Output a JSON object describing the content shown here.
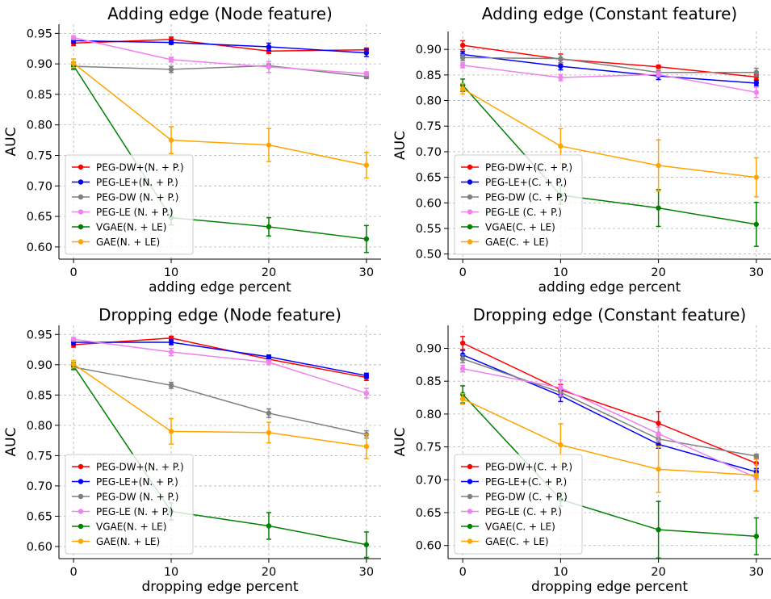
{
  "chart_data": [
    {
      "type": "line",
      "title": "Adding edge (Node feature)",
      "xlabel": "adding edge percent",
      "ylabel": "AUC",
      "x": [
        0,
        10,
        20,
        30
      ],
      "xticks": [
        "0",
        "10",
        "20",
        "30"
      ],
      "xlim": [
        -1.5,
        31.5
      ],
      "ylim": [
        0.58,
        0.965
      ],
      "yticks": [
        "0.60",
        "0.65",
        "0.70",
        "0.75",
        "0.80",
        "0.85",
        "0.90",
        "0.95"
      ],
      "grid": true,
      "legend": "lower-left",
      "series": [
        {
          "name": "PEG-DW+(N. + P.)",
          "color": "#ff0000",
          "values": [
            0.934,
            0.94,
            0.921,
            0.923
          ],
          "errors": [
            0.004,
            0.004,
            0.004,
            0.003
          ]
        },
        {
          "name": "PEG-LE+(N. + P.)",
          "color": "#0000ff",
          "values": [
            0.938,
            0.935,
            0.928,
            0.918
          ],
          "errors": [
            0.004,
            0.003,
            0.006,
            0.006
          ]
        },
        {
          "name": "PEG-DW (N. + P.)",
          "color": "#808080",
          "values": [
            0.896,
            0.891,
            0.897,
            0.879
          ],
          "errors": [
            0.004,
            0.005,
            0.003,
            0.003
          ]
        },
        {
          "name": "PEG-LE (N. + P.)",
          "color": "#ee82ee",
          "values": [
            0.943,
            0.907,
            0.895,
            0.884
          ],
          "errors": [
            0.003,
            0.004,
            0.009,
            0.003
          ]
        },
        {
          "name": "VGAE(N. + LE)",
          "color": "#008000",
          "values": [
            0.897,
            0.648,
            0.633,
            0.613
          ],
          "errors": [
            0.006,
            0.012,
            0.015,
            0.022
          ]
        },
        {
          "name": "GAE(N. + LE)",
          "color": "#ffa500",
          "values": [
            0.901,
            0.775,
            0.767,
            0.734
          ],
          "errors": [
            0.007,
            0.022,
            0.027,
            0.021
          ]
        }
      ]
    },
    {
      "type": "line",
      "title": "Adding edge (Constant feature)",
      "xlabel": "adding edge percent",
      "ylabel": "AUC",
      "x": [
        0,
        10,
        20,
        30
      ],
      "xticks": [
        "0",
        "10",
        "20",
        "30"
      ],
      "xlim": [
        -1.5,
        31.5
      ],
      "ylim": [
        0.49,
        0.935
      ],
      "yticks": [
        "0.50",
        "0.55",
        "0.60",
        "0.65",
        "0.70",
        "0.75",
        "0.80",
        "0.85",
        "0.90"
      ],
      "grid": true,
      "legend": "lower-left",
      "series": [
        {
          "name": "PEG-DW+(C. + P.)",
          "color": "#ff0000",
          "values": [
            0.908,
            0.881,
            0.866,
            0.846
          ],
          "errors": [
            0.009,
            0.01,
            0.003,
            0.005
          ]
        },
        {
          "name": "PEG-LE+(C. + P.)",
          "color": "#0000ff",
          "values": [
            0.89,
            0.867,
            0.848,
            0.834
          ],
          "errors": [
            0.006,
            0.007,
            0.007,
            0.005
          ]
        },
        {
          "name": "PEG-DW (C. + P.)",
          "color": "#808080",
          "values": [
            0.884,
            0.882,
            0.855,
            0.855
          ],
          "errors": [
            0.006,
            0.008,
            0.004,
            0.008
          ]
        },
        {
          "name": "PEG-LE (C. + P.)",
          "color": "#ee82ee",
          "values": [
            0.869,
            0.845,
            0.851,
            0.816
          ],
          "errors": [
            0.005,
            0.006,
            0.005,
            0.01
          ]
        },
        {
          "name": "VGAE(C. + LE)",
          "color": "#008000",
          "values": [
            0.83,
            0.615,
            0.59,
            0.558
          ],
          "errors": [
            0.012,
            0.018,
            0.036,
            0.043
          ]
        },
        {
          "name": "GAE(C. + LE)",
          "color": "#ffa500",
          "values": [
            0.823,
            0.711,
            0.673,
            0.65
          ],
          "errors": [
            0.01,
            0.034,
            0.05,
            0.038
          ]
        }
      ]
    },
    {
      "type": "line",
      "title": "Dropping edge (Node feature)",
      "xlabel": "dropping edge percent",
      "ylabel": "AUC",
      "x": [
        0,
        10,
        20,
        30
      ],
      "xticks": [
        "0",
        "10",
        "20",
        "30"
      ],
      "xlim": [
        -1.5,
        31.5
      ],
      "ylim": [
        0.58,
        0.965
      ],
      "yticks": [
        "0.60",
        "0.65",
        "0.70",
        "0.75",
        "0.80",
        "0.85",
        "0.90",
        "0.95"
      ],
      "grid": true,
      "legend": "lower-left",
      "series": [
        {
          "name": "PEG-DW+(N. + P.)",
          "color": "#ff0000",
          "values": [
            0.933,
            0.944,
            0.909,
            0.879
          ],
          "errors": [
            0.004,
            0.003,
            0.003,
            0.005
          ]
        },
        {
          "name": "PEG-LE+(N. + P.)",
          "color": "#0000ff",
          "values": [
            0.937,
            0.937,
            0.913,
            0.882
          ],
          "errors": [
            0.004,
            0.004,
            0.003,
            0.004
          ]
        },
        {
          "name": "PEG-DW (N. + P.)",
          "color": "#808080",
          "values": [
            0.896,
            0.866,
            0.82,
            0.785
          ],
          "errors": [
            0.004,
            0.005,
            0.007,
            0.006
          ]
        },
        {
          "name": "PEG-LE (N. + P.)",
          "color": "#ee82ee",
          "values": [
            0.942,
            0.921,
            0.904,
            0.853
          ],
          "errors": [
            0.003,
            0.006,
            0.004,
            0.008
          ]
        },
        {
          "name": "VGAE(N. + LE)",
          "color": "#008000",
          "values": [
            0.898,
            0.658,
            0.634,
            0.603
          ],
          "errors": [
            0.006,
            0.014,
            0.022,
            0.021
          ]
        },
        {
          "name": "GAE(N. + LE)",
          "color": "#ffa500",
          "values": [
            0.901,
            0.79,
            0.788,
            0.765
          ],
          "errors": [
            0.006,
            0.021,
            0.017,
            0.02
          ]
        }
      ]
    },
    {
      "type": "line",
      "title": "Dropping edge (Constant feature)",
      "xlabel": "dropping edge percent",
      "ylabel": "AUC",
      "x": [
        0,
        10,
        20,
        30
      ],
      "xticks": [
        "0",
        "10",
        "20",
        "30"
      ],
      "xlim": [
        -1.5,
        31.5
      ],
      "ylim": [
        0.58,
        0.935
      ],
      "yticks": [
        "0.60",
        "0.65",
        "0.70",
        "0.75",
        "0.80",
        "0.85",
        "0.90"
      ],
      "grid": true,
      "legend": "lower-left",
      "series": [
        {
          "name": "PEG-DW+(C. + P.)",
          "color": "#ff0000",
          "values": [
            0.908,
            0.837,
            0.786,
            0.725
          ],
          "errors": [
            0.01,
            0.008,
            0.018,
            0.008
          ]
        },
        {
          "name": "PEG-LE+(C. + P.)",
          "color": "#0000ff",
          "values": [
            0.89,
            0.828,
            0.754,
            0.712
          ],
          "errors": [
            0.007,
            0.009,
            0.006,
            0.005
          ]
        },
        {
          "name": "PEG-DW (C. + P.)",
          "color": "#808080",
          "values": [
            0.884,
            0.833,
            0.762,
            0.736
          ],
          "errors": [
            0.006,
            0.007,
            0.005,
            0.003
          ]
        },
        {
          "name": "PEG-LE (C. + P.)",
          "color": "#ee82ee",
          "values": [
            0.869,
            0.84,
            0.77,
            0.703
          ],
          "errors": [
            0.005,
            0.012,
            0.01,
            0.02
          ]
        },
        {
          "name": "VGAE(C. + LE)",
          "color": "#008000",
          "values": [
            0.83,
            0.67,
            0.624,
            0.614
          ],
          "errors": [
            0.013,
            0.01,
            0.043,
            0.028
          ]
        },
        {
          "name": "GAE(C. + LE)",
          "color": "#ffa500",
          "values": [
            0.823,
            0.753,
            0.716,
            0.707
          ],
          "errors": [
            0.008,
            0.032,
            0.035,
            0.024
          ]
        }
      ]
    }
  ]
}
